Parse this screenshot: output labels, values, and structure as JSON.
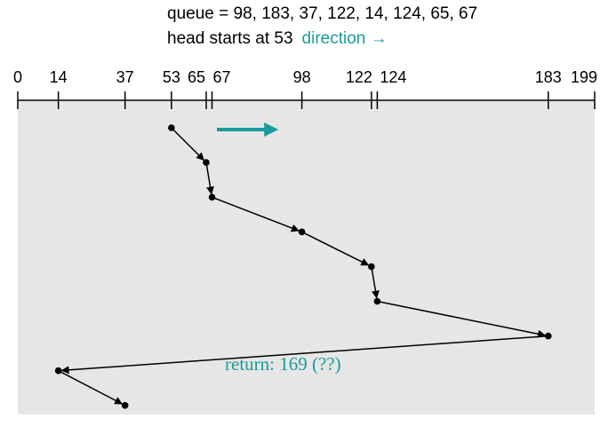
{
  "queue_line": {
    "prefix": "queue = ",
    "values_text": "98, 183, 37, 122, 14, 124, 65, 67"
  },
  "head_line": {
    "text": "head starts at 53",
    "direction_label": "direction →"
  },
  "axis": {
    "min": 0,
    "max": 199,
    "tick_labels": [
      "0",
      "14",
      "37",
      "53",
      "65",
      "67",
      "98",
      "122",
      "124",
      "183",
      "199"
    ]
  },
  "annotation": {
    "text": "return: 169 (??)"
  },
  "colors": {
    "background": "#e6e6e6",
    "accent": "#1a9b9b",
    "line": "#000000"
  },
  "chart_data": {
    "type": "line",
    "x": [
      53,
      65,
      67,
      98,
      122,
      124,
      183,
      14,
      37
    ],
    "xlim": [
      0,
      199
    ],
    "series": [
      {
        "values": [
          53,
          65,
          67,
          98,
          122,
          124,
          183,
          14,
          37
        ]
      }
    ]
  }
}
